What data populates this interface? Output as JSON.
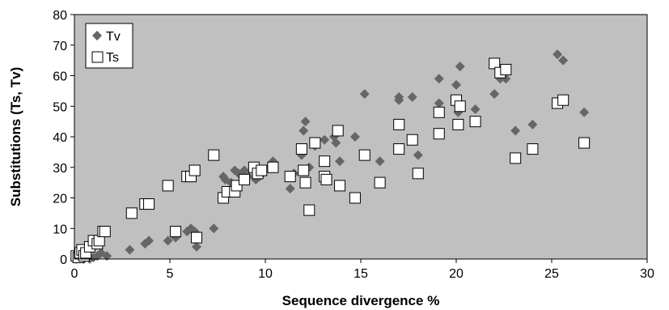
{
  "chart_data": {
    "type": "scatter",
    "xlabel": "Sequence divergence %",
    "ylabel": "Substitutions (Ts, Tv)",
    "xlim": [
      0,
      30
    ],
    "ylim": [
      0,
      80
    ],
    "x_ticks": [
      "0",
      "5",
      "10",
      "15",
      "20",
      "25",
      "30"
    ],
    "y_ticks": [
      "0",
      "10",
      "20",
      "30",
      "40",
      "50",
      "60",
      "70",
      "80"
    ],
    "plot_background": "#c0c0c0",
    "grid": false,
    "legend_position": "top-left",
    "series": [
      {
        "name": "Tv",
        "marker": "diamond",
        "color": "#666666",
        "points": [
          [
            0.1,
            0
          ],
          [
            0.2,
            0.5
          ],
          [
            0.3,
            1
          ],
          [
            0.5,
            0
          ],
          [
            0.6,
            1
          ],
          [
            0.8,
            0
          ],
          [
            1.0,
            0.5
          ],
          [
            1.2,
            1
          ],
          [
            1.4,
            2
          ],
          [
            1.7,
            1
          ],
          [
            2.9,
            3
          ],
          [
            3.7,
            5
          ],
          [
            3.9,
            6
          ],
          [
            4.9,
            6
          ],
          [
            5.3,
            7
          ],
          [
            5.9,
            9
          ],
          [
            6.1,
            10
          ],
          [
            6.3,
            9
          ],
          [
            6.4,
            4
          ],
          [
            7.3,
            10
          ],
          [
            7.8,
            27
          ],
          [
            7.9,
            26
          ],
          [
            8.2,
            25
          ],
          [
            8.4,
            29
          ],
          [
            8.6,
            28
          ],
          [
            8.9,
            29
          ],
          [
            9.1,
            27
          ],
          [
            9.5,
            26
          ],
          [
            9.7,
            27
          ],
          [
            10.4,
            32
          ],
          [
            11.3,
            23
          ],
          [
            11.5,
            28
          ],
          [
            11.9,
            34
          ],
          [
            12.0,
            42
          ],
          [
            12.1,
            45
          ],
          [
            12.3,
            30
          ],
          [
            12.6,
            37
          ],
          [
            13.1,
            39
          ],
          [
            13.6,
            40
          ],
          [
            13.7,
            38
          ],
          [
            13.9,
            32
          ],
          [
            14.7,
            40
          ],
          [
            15.2,
            54
          ],
          [
            16.0,
            32
          ],
          [
            17.0,
            52
          ],
          [
            17.0,
            53
          ],
          [
            17.7,
            53
          ],
          [
            18.0,
            34
          ],
          [
            19.1,
            59
          ],
          [
            19.1,
            51
          ],
          [
            20.0,
            57
          ],
          [
            20.1,
            48
          ],
          [
            20.2,
            63
          ],
          [
            21.0,
            49
          ],
          [
            22.0,
            54
          ],
          [
            22.3,
            59
          ],
          [
            22.6,
            59
          ],
          [
            23.1,
            42
          ],
          [
            24.0,
            44
          ],
          [
            25.3,
            67
          ],
          [
            25.6,
            65
          ],
          [
            26.7,
            48
          ]
        ]
      },
      {
        "name": "Ts",
        "marker": "square",
        "color": "#ffffff",
        "points": [
          [
            0.1,
            1
          ],
          [
            0.2,
            0.5
          ],
          [
            0.3,
            2
          ],
          [
            0.4,
            3
          ],
          [
            0.5,
            1
          ],
          [
            0.6,
            2
          ],
          [
            0.8,
            4
          ],
          [
            1.0,
            6
          ],
          [
            1.2,
            5
          ],
          [
            1.3,
            6
          ],
          [
            1.5,
            9
          ],
          [
            1.6,
            9
          ],
          [
            3.0,
            15
          ],
          [
            3.7,
            18
          ],
          [
            3.9,
            18
          ],
          [
            4.9,
            24
          ],
          [
            5.3,
            9
          ],
          [
            5.9,
            27
          ],
          [
            6.1,
            27
          ],
          [
            6.3,
            29
          ],
          [
            6.4,
            7
          ],
          [
            7.3,
            34
          ],
          [
            7.8,
            20
          ],
          [
            8.0,
            22
          ],
          [
            8.4,
            22
          ],
          [
            8.5,
            24
          ],
          [
            8.9,
            26
          ],
          [
            9.4,
            30
          ],
          [
            9.6,
            28
          ],
          [
            9.8,
            29
          ],
          [
            10.4,
            30
          ],
          [
            11.3,
            27
          ],
          [
            11.9,
            36
          ],
          [
            12.0,
            29
          ],
          [
            12.1,
            25
          ],
          [
            12.3,
            16
          ],
          [
            12.6,
            38
          ],
          [
            13.1,
            27
          ],
          [
            13.1,
            32
          ],
          [
            13.2,
            26
          ],
          [
            13.8,
            42
          ],
          [
            13.9,
            24
          ],
          [
            14.7,
            20
          ],
          [
            15.2,
            34
          ],
          [
            16.0,
            25
          ],
          [
            17.0,
            44
          ],
          [
            17.0,
            36
          ],
          [
            17.7,
            39
          ],
          [
            18.0,
            28
          ],
          [
            19.1,
            48
          ],
          [
            19.1,
            41
          ],
          [
            20.0,
            52
          ],
          [
            20.1,
            44
          ],
          [
            20.2,
            50
          ],
          [
            21.0,
            45
          ],
          [
            22.0,
            64
          ],
          [
            22.3,
            61
          ],
          [
            22.6,
            62
          ],
          [
            23.1,
            33
          ],
          [
            24.0,
            36
          ],
          [
            25.3,
            51
          ],
          [
            25.6,
            52
          ],
          [
            26.7,
            38
          ]
        ]
      }
    ]
  }
}
